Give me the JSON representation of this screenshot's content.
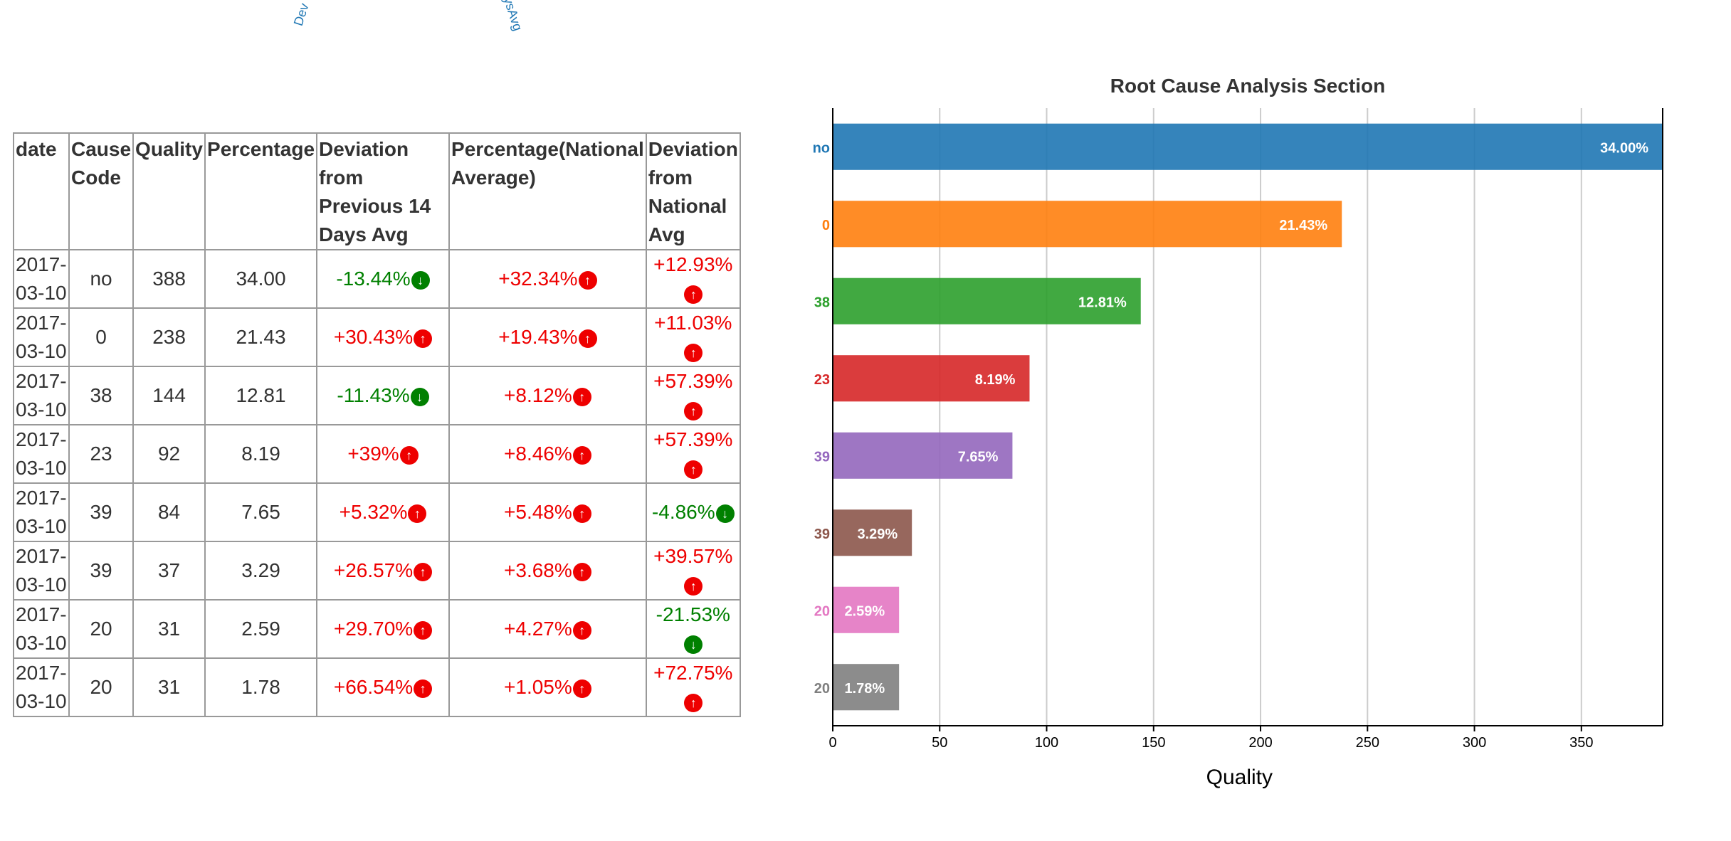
{
  "top_labels": [
    "Dev",
    "ysAvg"
  ],
  "table": {
    "headers": [
      "date",
      "Cause Code",
      "Quality",
      "Percentage",
      "Deviation from Previous 14 Days Avg",
      "Percentage(National Average)",
      "Deviation from National Avg"
    ],
    "rows": [
      {
        "date": "2017-03-10",
        "cause_code": "no",
        "quality": "388",
        "percentage": "34.00",
        "dev_prev14": {
          "text": "-13.44%",
          "dir": "down"
        },
        "national_pct": {
          "text": "+32.34%",
          "dir": "up"
        },
        "dev_national": {
          "text": "+12.93%",
          "dir": "up"
        }
      },
      {
        "date": "2017-03-10",
        "cause_code": "0",
        "quality": "238",
        "percentage": "21.43",
        "dev_prev14": {
          "text": "+30.43%",
          "dir": "up"
        },
        "national_pct": {
          "text": "+19.43%",
          "dir": "up"
        },
        "dev_national": {
          "text": "+11.03%",
          "dir": "up"
        }
      },
      {
        "date": "2017-03-10",
        "cause_code": "38",
        "quality": "144",
        "percentage": "12.81",
        "dev_prev14": {
          "text": "-11.43%",
          "dir": "down"
        },
        "national_pct": {
          "text": "+8.12%",
          "dir": "up"
        },
        "dev_national": {
          "text": "+57.39%",
          "dir": "up"
        }
      },
      {
        "date": "2017-03-10",
        "cause_code": "23",
        "quality": "92",
        "percentage": "8.19",
        "dev_prev14": {
          "text": "+39%",
          "dir": "up"
        },
        "national_pct": {
          "text": "+8.46%",
          "dir": "up"
        },
        "dev_national": {
          "text": "+57.39%",
          "dir": "up"
        }
      },
      {
        "date": "2017-03-10",
        "cause_code": "39",
        "quality": "84",
        "percentage": "7.65",
        "dev_prev14": {
          "text": "+5.32%",
          "dir": "up"
        },
        "national_pct": {
          "text": "+5.48%",
          "dir": "up"
        },
        "dev_national": {
          "text": "-4.86%",
          "dir": "down"
        }
      },
      {
        "date": "2017-03-10",
        "cause_code": "39",
        "quality": "37",
        "percentage": "3.29",
        "dev_prev14": {
          "text": "+26.57%",
          "dir": "up"
        },
        "national_pct": {
          "text": "+3.68%",
          "dir": "up"
        },
        "dev_national": {
          "text": "+39.57%",
          "dir": "up"
        }
      },
      {
        "date": "2017-03-10",
        "cause_code": "20",
        "quality": "31",
        "percentage": "2.59",
        "dev_prev14": {
          "text": "+29.70%",
          "dir": "up"
        },
        "national_pct": {
          "text": "+4.27%",
          "dir": "up"
        },
        "dev_national": {
          "text": "-21.53%",
          "dir": "down"
        }
      },
      {
        "date": "2017-03-10",
        "cause_code": "20",
        "quality": "31",
        "percentage": "1.78",
        "dev_prev14": {
          "text": "+66.54%",
          "dir": "up"
        },
        "national_pct": {
          "text": "+1.05%",
          "dir": "up"
        },
        "dev_national": {
          "text": "+72.75%",
          "dir": "up"
        }
      }
    ],
    "up_color": "#ee0000",
    "down_color": "#008000"
  },
  "chart_data": {
    "type": "bar",
    "orientation": "horizontal",
    "title": "Root Cause Analysis Section",
    "xlabel": "Quality",
    "ylabel": "",
    "categories": [
      "no",
      "0",
      "38",
      "23",
      "39",
      "39",
      "20",
      "20"
    ],
    "values": [
      388,
      238,
      144,
      92,
      84,
      37,
      31,
      31
    ],
    "data_labels": [
      "34.00%",
      "21.43%",
      "12.81%",
      "8.19%",
      "7.65%",
      "3.29%",
      "2.59%",
      "1.78%"
    ],
    "colors": [
      "#1f77b4",
      "#ff7f0e",
      "#2ca02c",
      "#d62728",
      "#9467bd",
      "#8c564b",
      "#e377c2",
      "#7f7f7f"
    ],
    "xlim": [
      0,
      388
    ],
    "xticks": [
      0,
      50,
      100,
      150,
      200,
      250,
      300,
      350
    ],
    "grid": true
  }
}
